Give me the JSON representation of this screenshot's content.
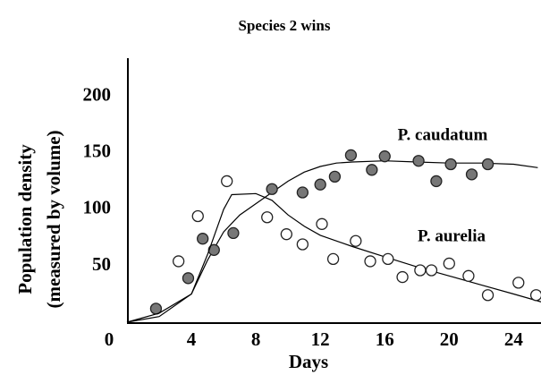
{
  "chart_data": {
    "type": "scatter",
    "title": "Species 2 wins",
    "xlabel": "Days",
    "ylabel": [
      "Population density",
      "(measured by volume)"
    ],
    "xlim": [
      0,
      25.7
    ],
    "ylim": [
      0,
      234
    ],
    "xticks": [
      0,
      4,
      8,
      12,
      16,
      20,
      24
    ],
    "yticks": [
      50,
      100,
      150,
      200
    ],
    "series": [
      {
        "name": "P. caudatum",
        "color": "#777777",
        "marker": "filled",
        "x": [
          1.8,
          3.8,
          4.7,
          5.4,
          6.6,
          9.0,
          10.9,
          12.0,
          12.9,
          13.9,
          15.2,
          16.0,
          18.1,
          19.2,
          20.1,
          21.4,
          22.4
        ],
        "values": [
          12,
          39,
          74,
          64,
          79,
          118,
          115,
          122,
          129,
          148,
          135,
          147,
          143,
          125,
          140,
          131,
          140
        ],
        "fit_x": [
          0,
          2,
          4,
          5,
          6,
          7,
          8,
          9,
          10,
          11,
          12,
          13,
          14,
          16,
          18,
          20,
          22,
          24,
          25.5
        ],
        "fit_values": [
          0,
          5,
          25,
          55,
          80,
          95,
          105,
          115,
          125,
          133,
          138,
          141,
          142,
          143,
          142,
          141,
          141,
          140,
          137
        ]
      },
      {
        "name": "P. aurelia",
        "color": "#ffffff",
        "marker": "open",
        "x": [
          3.2,
          4.4,
          6.2,
          8.7,
          9.9,
          10.9,
          12.1,
          12.8,
          14.2,
          15.1,
          16.2,
          17.1,
          18.2,
          18.9,
          20.0,
          21.2,
          22.4,
          24.3,
          25.4
        ],
        "values": [
          54,
          94,
          125,
          93,
          78,
          69,
          87,
          56,
          72,
          54,
          56,
          40,
          46,
          46,
          52,
          41,
          24,
          35,
          24
        ],
        "fit_x": [
          0,
          2,
          4,
          5,
          6,
          6.5,
          8,
          9,
          10,
          11,
          12,
          14,
          16,
          18,
          20,
          22,
          24,
          25.7
        ],
        "fit_values": [
          0,
          8,
          25,
          60,
          100,
          113,
          114,
          108,
          95,
          85,
          77,
          67,
          58,
          49,
          41,
          33,
          25,
          18
        ]
      }
    ]
  }
}
